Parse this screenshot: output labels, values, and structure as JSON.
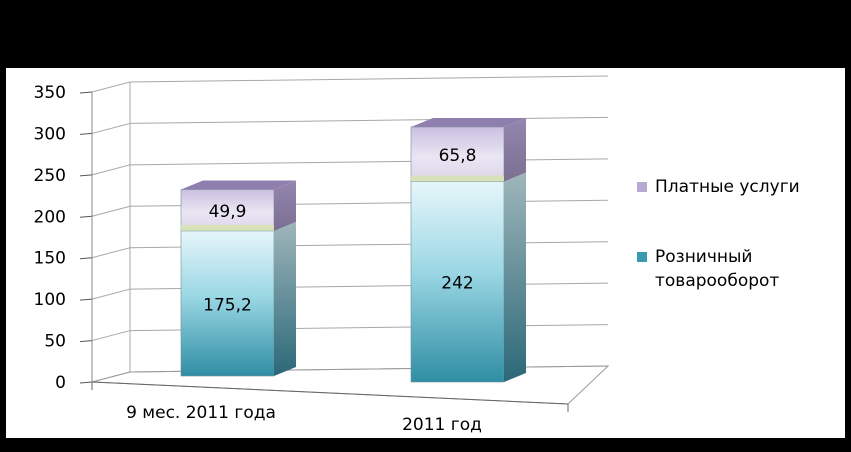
{
  "chart_data": {
    "type": "bar",
    "stacked": true,
    "three_d": true,
    "categories": [
      "9 мес. 2011 года",
      "2011 год"
    ],
    "series": [
      {
        "name": "Розничный товарооборот",
        "values": [
          175.2,
          242
        ],
        "labels": [
          "175,2",
          "242"
        ],
        "color": "#3a9bb0"
      },
      {
        "name": "Платные услуги",
        "values": [
          49.9,
          65.8
        ],
        "labels": [
          "49,9",
          "65,8"
        ],
        "color": "#b7a9cf"
      }
    ],
    "y_ticks": [
      "0",
      "50",
      "100",
      "150",
      "200",
      "250",
      "300",
      "350"
    ],
    "ylim": [
      0,
      350
    ],
    "grid": true,
    "legend_position": "right",
    "legend": [
      {
        "lines": [
          "Платные услуги"
        ],
        "color": "#b7a9cf"
      },
      {
        "lines": [
          "Розничный",
          "товарооборот"
        ],
        "color": "#3a9bb0"
      }
    ],
    "background": "#ffffff",
    "frame": "#000000"
  }
}
